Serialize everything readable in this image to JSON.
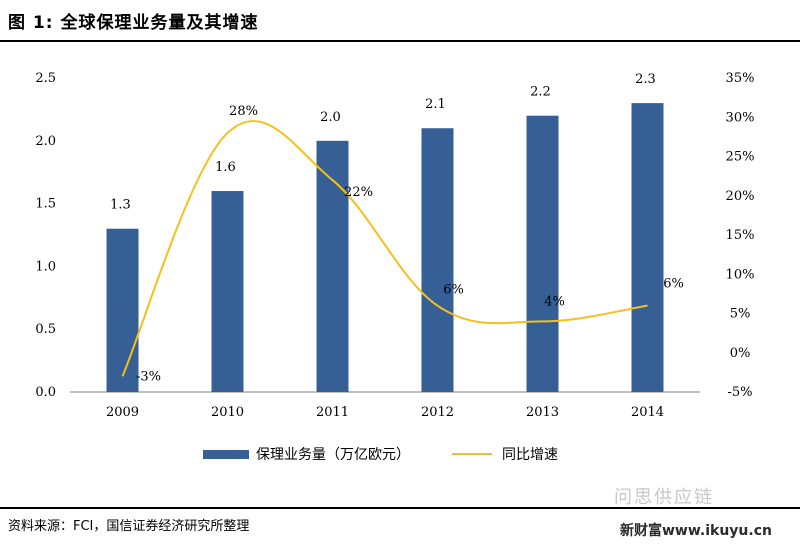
{
  "figure": {
    "title": "图 1:  全球保理业务量及其增速",
    "source": "资料来源：FCI，国信证券经济研究所整理",
    "watermark": "问思供应链",
    "watermark_site": "新财富www.ikuyu.cn"
  },
  "colors": {
    "bar": "#355f95",
    "line": "#f5c01c"
  },
  "chart_data": {
    "type": "bar+line",
    "categories": [
      "2009",
      "2010",
      "2011",
      "2012",
      "2013",
      "2014"
    ],
    "series": [
      {
        "name": "保理业务量（万亿欧元）",
        "type": "bar",
        "axis": "left",
        "values": [
          1.3,
          1.6,
          2.0,
          2.1,
          2.2,
          2.3
        ],
        "labels": [
          "1.3",
          "1.6",
          "2.0",
          "2.1",
          "2.2",
          "2.3"
        ]
      },
      {
        "name": "同比增速",
        "type": "line",
        "axis": "right",
        "values": [
          -3,
          28,
          22,
          6,
          4,
          6
        ],
        "labels": [
          "-3%",
          "28%",
          "22%",
          "6%",
          "4%",
          "6%"
        ]
      }
    ],
    "left_axis": {
      "ylim": [
        0,
        2.5
      ],
      "ticks": [
        "0.0",
        "0.5",
        "1.0",
        "1.5",
        "2.0",
        "2.5"
      ]
    },
    "right_axis": {
      "ylim": [
        -5,
        35
      ],
      "ticks": [
        "-5%",
        "0%",
        "5%",
        "10%",
        "15%",
        "20%",
        "25%",
        "30%",
        "35%"
      ]
    },
    "legend": {
      "position": "bottom"
    }
  }
}
